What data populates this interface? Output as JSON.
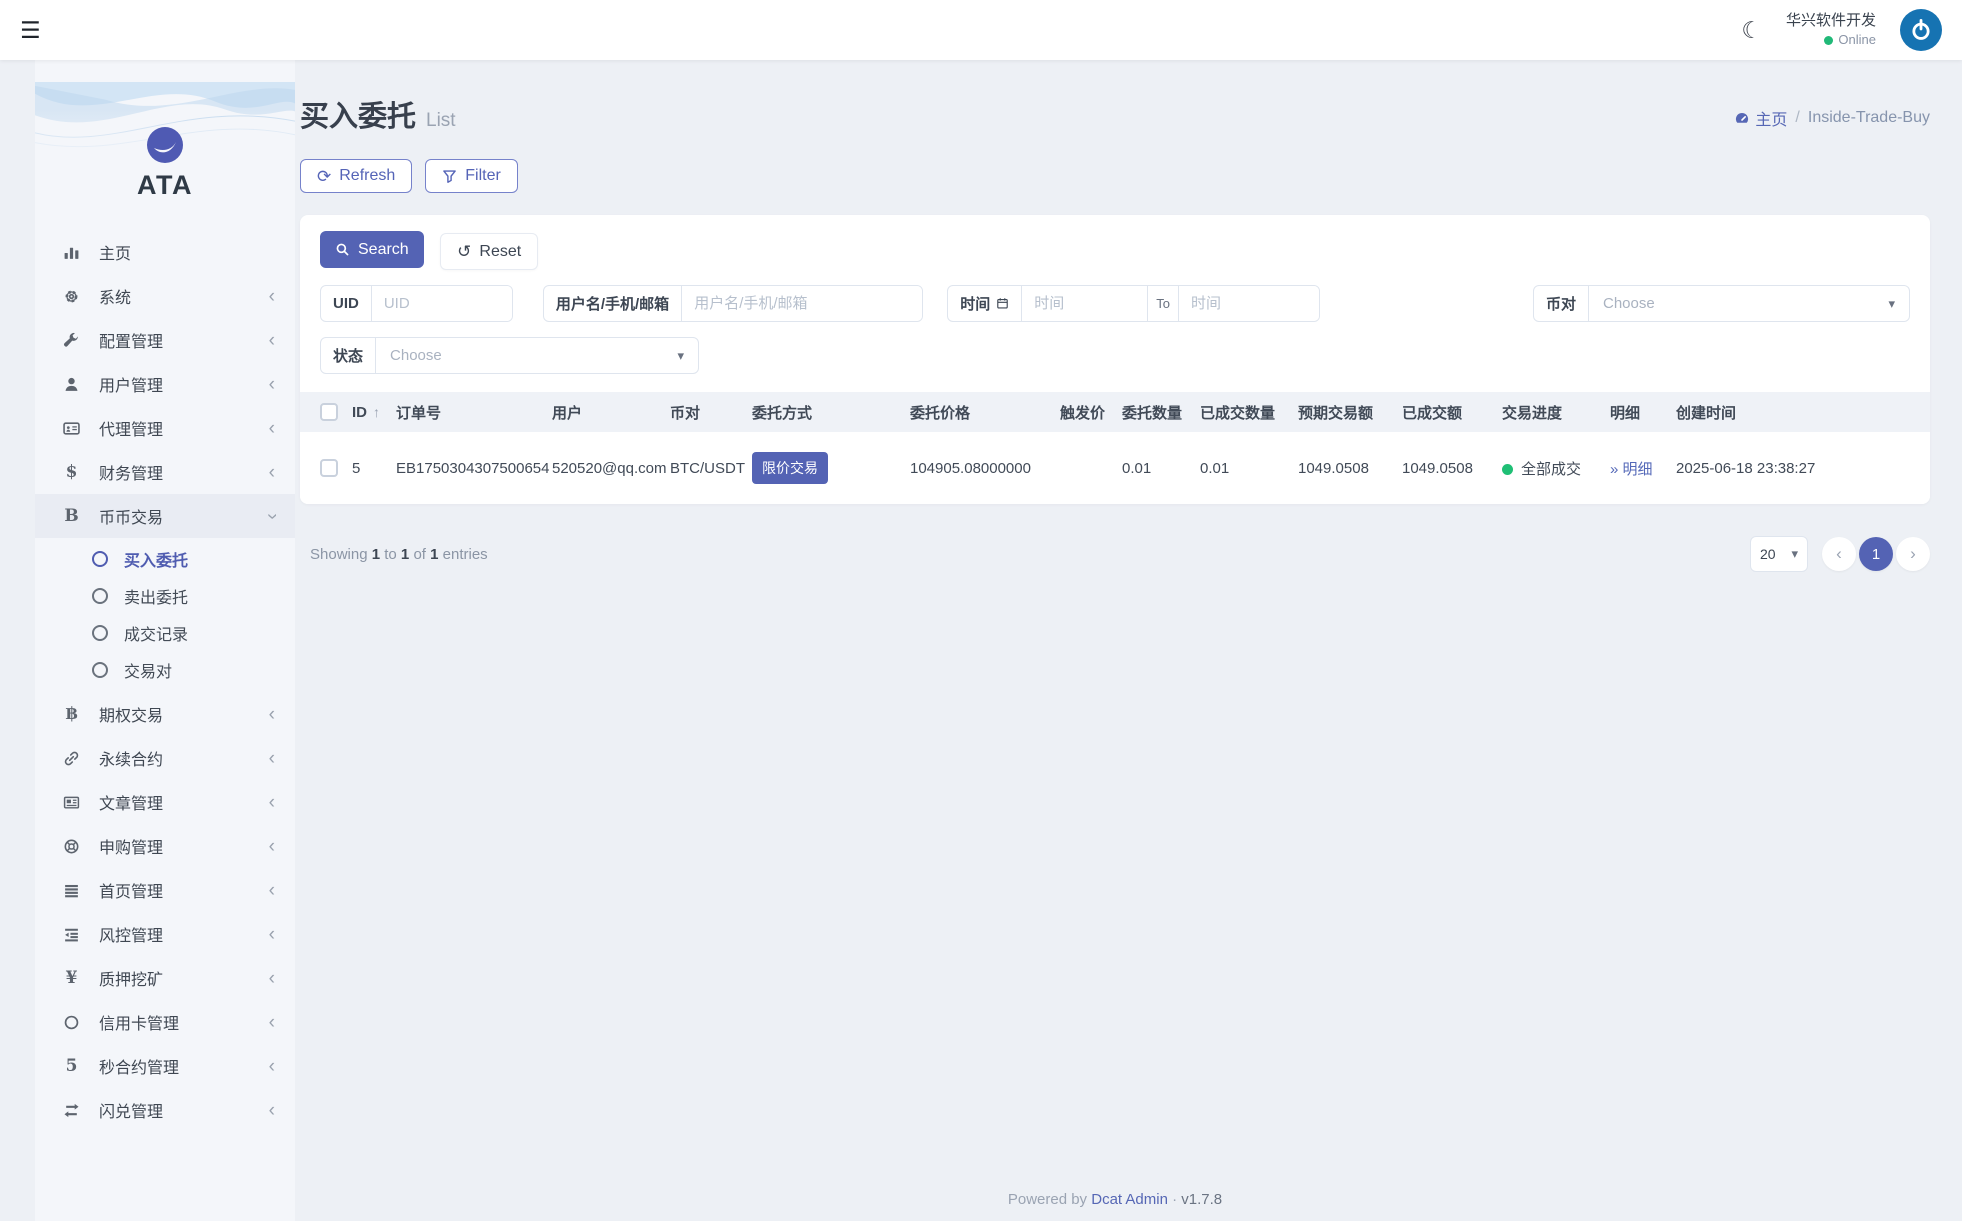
{
  "topbar": {
    "user_name": "华兴软件开发",
    "status": "Online"
  },
  "sidebar": {
    "logo_text": "ATA",
    "items": [
      {
        "id": "home",
        "label": "主页",
        "icon": "chart-bar-icon"
      },
      {
        "id": "system",
        "label": "系统",
        "icon": "gear-icon",
        "chevron": "left"
      },
      {
        "id": "config",
        "label": "配置管理",
        "icon": "wrench-icon",
        "chevron": "left"
      },
      {
        "id": "users",
        "label": "用户管理",
        "icon": "user-icon",
        "chevron": "left"
      },
      {
        "id": "agents",
        "label": "代理管理",
        "icon": "id-card-icon",
        "chevron": "left"
      },
      {
        "id": "finance",
        "label": "财务管理",
        "icon": "dollar-icon",
        "chevron": "left"
      },
      {
        "id": "spot-trade",
        "label": "币币交易",
        "icon": "bold-b-icon",
        "chevron": "down",
        "active_parent": true,
        "children": [
          {
            "label": "买入委托",
            "active": true
          },
          {
            "label": "卖出委托"
          },
          {
            "label": "成交记录"
          },
          {
            "label": "交易对"
          }
        ]
      },
      {
        "id": "options",
        "label": "期权交易",
        "icon": "bitcoin-icon",
        "chevron": "left"
      },
      {
        "id": "perpetual",
        "label": "永续合约",
        "icon": "link-icon",
        "chevron": "left"
      },
      {
        "id": "articles",
        "label": "文章管理",
        "icon": "newspaper-icon",
        "chevron": "left"
      },
      {
        "id": "subscribe",
        "label": "申购管理",
        "icon": "life-ring-icon",
        "chevron": "left"
      },
      {
        "id": "homepage",
        "label": "首页管理",
        "icon": "list-icon",
        "chevron": "left"
      },
      {
        "id": "risk",
        "label": "风控管理",
        "icon": "outdent-icon",
        "chevron": "left"
      },
      {
        "id": "staking",
        "label": "质押挖矿",
        "icon": "yen-icon",
        "chevron": "left"
      },
      {
        "id": "creditcard",
        "label": "信用卡管理",
        "icon": "circle-icon",
        "chevron": "left"
      },
      {
        "id": "seconds",
        "label": "秒合约管理",
        "icon": "five-icon",
        "chevron": "left"
      },
      {
        "id": "flash-swap",
        "label": "闪兑管理",
        "icon": "exchange-icon",
        "chevron": "left"
      }
    ]
  },
  "header": {
    "title": "买入委托",
    "subtitle": "List",
    "breadcrumb": {
      "home": "主页",
      "current": "Inside-Trade-Buy"
    }
  },
  "toolbar": {
    "refresh_label": "Refresh",
    "filter_label": "Filter"
  },
  "filter": {
    "search_label": "Search",
    "reset_label": "Reset",
    "fields": {
      "uid": {
        "label": "UID",
        "placeholder": "UID",
        "value": ""
      },
      "user": {
        "label": "用户名/手机/邮箱",
        "placeholder": "用户名/手机/邮箱",
        "value": ""
      },
      "time": {
        "label": "时间",
        "placeholder_start": "时间",
        "to_label": "To",
        "placeholder_end": "时间"
      },
      "pair": {
        "label": "币对",
        "value": "Choose"
      },
      "status": {
        "label": "状态",
        "value": "Choose"
      }
    }
  },
  "table": {
    "columns": [
      "ID",
      "订单号",
      "用户",
      "币对",
      "委托方式",
      "委托价格",
      "触发价",
      "委托数量",
      "已成交数量",
      "预期交易额",
      "已成交额",
      "交易进度",
      "明细",
      "创建时间"
    ],
    "rows": [
      {
        "id": "5",
        "order_no": "EB1750304307500654",
        "user": "520520@qq.com",
        "pair": "BTC/USDT",
        "order_type": "限价交易",
        "price": "104905.08000000",
        "trigger_price": "",
        "amount": "0.01",
        "filled_amount": "0.01",
        "expected_total": "1049.0508",
        "filled_total": "1049.0508",
        "progress": "全部成交",
        "detail": "明细",
        "created_at": "2025-06-18 23:38:27"
      }
    ]
  },
  "table_footer": {
    "showing": {
      "lead": "Showing",
      "from": "1",
      "to_word": "to",
      "to": "1",
      "of_word": "of",
      "total": "1",
      "tail": "entries"
    },
    "per_page": "20",
    "current_page": "1"
  },
  "footer": {
    "powered_by": "Powered by",
    "brand": "Dcat Admin",
    "dot": "·",
    "version": "v1.7.8"
  },
  "icons": {
    "hamburger": "☰",
    "moon": "☾",
    "refresh": "⟳",
    "reset": "↺",
    "caret_down": "▾",
    "chevron_left": "‹",
    "chevron_right": "›",
    "detail_arrow": "»",
    "sort_asc": "↑",
    "breadcrumb_sep": "/"
  },
  "colors": {
    "primary": "#5463b4",
    "link": "#5667b5",
    "success": "#21b978",
    "avatar_blue": "#1673b2",
    "page_bg": "#edf0f5",
    "badge_bg": "#5463b4"
  }
}
